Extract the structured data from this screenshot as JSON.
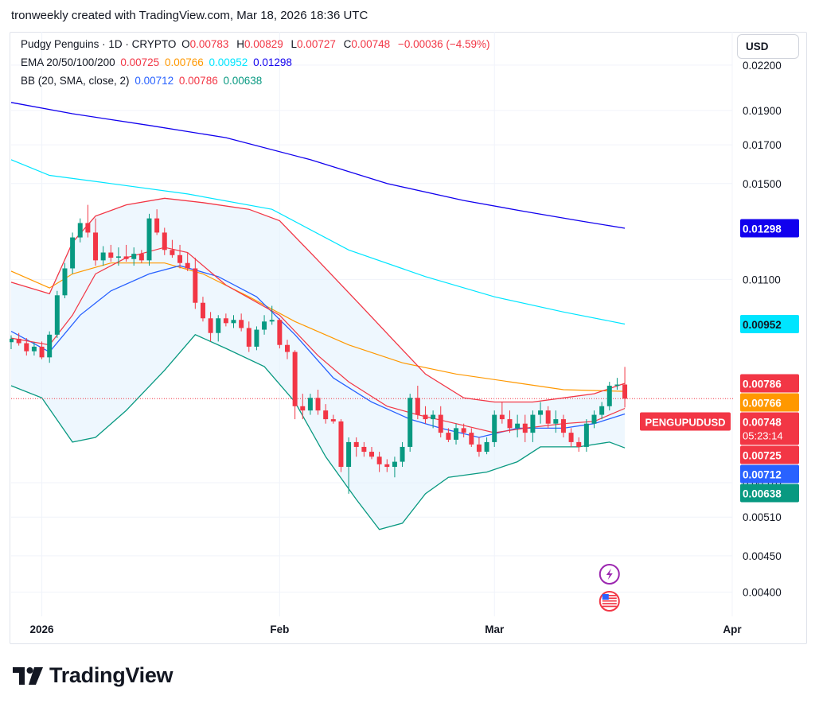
{
  "header": {
    "text": "tronweekly created with TradingView.com, Mar 18, 2026 18:36 UTC"
  },
  "legend": {
    "symbol": "Pudgy Penguins · 1D · CRYPTO",
    "o_label": "O",
    "o_value": "0.00783",
    "h_label": "H",
    "h_value": "0.00829",
    "l_label": "L",
    "l_value": "0.00727",
    "c_label": "C",
    "c_value": "0.00748",
    "change": "−0.00036 (−4.59%)",
    "ema_label": "EMA 20/50/100/200",
    "ema20": "0.00725",
    "ema50": "0.00766",
    "ema100": "0.00952",
    "ema200": "0.01298",
    "bb_label": "BB (20, SMA, close, 2)",
    "bb_basis": "0.00712",
    "bb_upper": "0.00786",
    "bb_lower": "0.00638"
  },
  "currency_button": "USD",
  "brand": {
    "name": "TradingView"
  },
  "colors": {
    "up": "#089981",
    "down": "#f23645",
    "ema20": "#f23645",
    "ema50": "#ff9800",
    "ema100": "#00e5ff",
    "ema200": "#1100ee",
    "bb_basis": "#2962ff",
    "bb_upper": "#f23645",
    "bb_lower": "#089981",
    "bb_fill": "#e3f2fd"
  },
  "chart_data": {
    "type": "candlestick",
    "title": "Pudgy Penguins · 1D · CRYPTO",
    "symbol_tag": "PENGUPUDUSD",
    "countdown": "05:23:14",
    "y_axis": {
      "scale": "log",
      "ticks": [
        "0.02200",
        "0.01900",
        "0.01700",
        "0.01500",
        "0.01100",
        "0.00570",
        "0.00510",
        "0.00450",
        "0.00400"
      ],
      "range": [
        0.0037,
        0.0245
      ]
    },
    "x_axis": {
      "start_date": "2025-12-28",
      "end_date": "2026-04-01",
      "ticks": [
        {
          "label": "2026",
          "date": "2026-01-01"
        },
        {
          "label": "Feb",
          "date": "2026-02-01"
        },
        {
          "label": "Mar",
          "date": "2026-03-01"
        },
        {
          "label": "Apr",
          "date": "2026-04-01"
        }
      ]
    },
    "price_labels": [
      {
        "name": "EMA 200",
        "value": "0.01298",
        "color": "#1100ee",
        "text_color": "#ffffff"
      },
      {
        "name": "EMA 100",
        "value": "0.00952",
        "color": "#00e5ff",
        "text_color": "#131722"
      },
      {
        "name": "BB upper",
        "value": "0.00786",
        "color": "#f23645",
        "text_color": "#ffffff"
      },
      {
        "name": "EMA 50",
        "value": "0.00766",
        "color": "#ff9800",
        "text_color": "#ffffff"
      },
      {
        "name": "Last",
        "value": "0.00748",
        "color": "#f23645",
        "text_color": "#ffffff"
      },
      {
        "name": "EMA 20",
        "value": "0.00725",
        "color": "#f23645",
        "text_color": "#ffffff"
      },
      {
        "name": "BB basis",
        "value": "0.00712",
        "color": "#2962ff",
        "text_color": "#ffffff"
      },
      {
        "name": "BB lower",
        "value": "0.00638",
        "color": "#089981",
        "text_color": "#ffffff"
      }
    ],
    "candles": [
      [
        "2025-12-28",
        0.00898,
        0.00918,
        0.00878,
        0.00908
      ],
      [
        "2025-12-29",
        0.00908,
        0.00925,
        0.00888,
        0.00895
      ],
      [
        "2025-12-30",
        0.00895,
        0.0091,
        0.0086,
        0.00872
      ],
      [
        "2025-12-31",
        0.00872,
        0.00898,
        0.0086,
        0.00885
      ],
      [
        "2026-01-01",
        0.00885,
        0.009,
        0.0085,
        0.00855
      ],
      [
        "2026-01-02",
        0.00855,
        0.0093,
        0.0084,
        0.0092
      ],
      [
        "2026-01-03",
        0.0092,
        0.0106,
        0.0091,
        0.01045
      ],
      [
        "2026-01-04",
        0.01045,
        0.0116,
        0.01035,
        0.0114
      ],
      [
        "2026-01-05",
        0.0114,
        0.0128,
        0.0112,
        0.0126
      ],
      [
        "2026-01-06",
        0.0126,
        0.0134,
        0.0124,
        0.0132
      ],
      [
        "2026-01-07",
        0.0132,
        0.014,
        0.0126,
        0.0128
      ],
      [
        "2026-01-08",
        0.0128,
        0.0134,
        0.0115,
        0.0117
      ],
      [
        "2026-01-09",
        0.0117,
        0.01225,
        0.0115,
        0.012
      ],
      [
        "2026-01-10",
        0.012,
        0.0123,
        0.01165,
        0.0118
      ],
      [
        "2026-01-11",
        0.0118,
        0.0122,
        0.0115,
        0.01185
      ],
      [
        "2026-01-12",
        0.01185,
        0.0123,
        0.01165,
        0.01175
      ],
      [
        "2026-01-13",
        0.01175,
        0.0122,
        0.0115,
        0.01195
      ],
      [
        "2026-01-14",
        0.01195,
        0.0121,
        0.0116,
        0.0117
      ],
      [
        "2026-01-15",
        0.0117,
        0.0136,
        0.0115,
        0.0134
      ],
      [
        "2026-01-16",
        0.0134,
        0.0138,
        0.0127,
        0.0128
      ],
      [
        "2026-01-17",
        0.0128,
        0.013,
        0.0119,
        0.0121
      ],
      [
        "2026-01-18",
        0.0121,
        0.0125,
        0.0118,
        0.0119
      ],
      [
        "2026-01-19",
        0.0119,
        0.0123,
        0.0114,
        0.0116
      ],
      [
        "2026-01-20",
        0.0116,
        0.012,
        0.0113,
        0.0114
      ],
      [
        "2026-01-21",
        0.0114,
        0.0118,
        0.01,
        0.0102
      ],
      [
        "2026-01-22",
        0.0102,
        0.0104,
        0.0096,
        0.0097
      ],
      [
        "2026-01-23",
        0.0097,
        0.0099,
        0.009,
        0.00925
      ],
      [
        "2026-01-24",
        0.00925,
        0.0098,
        0.009,
        0.0097
      ],
      [
        "2026-01-25",
        0.0097,
        0.00985,
        0.00945,
        0.00955
      ],
      [
        "2026-01-26",
        0.00955,
        0.0098,
        0.0094,
        0.00965
      ],
      [
        "2026-01-27",
        0.00965,
        0.00985,
        0.0093,
        0.0094
      ],
      [
        "2026-01-28",
        0.0094,
        0.0096,
        0.0087,
        0.00885
      ],
      [
        "2026-01-29",
        0.00885,
        0.00945,
        0.00875,
        0.00935
      ],
      [
        "2026-01-30",
        0.00935,
        0.0098,
        0.0092,
        0.0096
      ],
      [
        "2026-01-31",
        0.0096,
        0.0101,
        0.0095,
        0.00965
      ],
      [
        "2026-02-01",
        0.00965,
        0.0097,
        0.0088,
        0.0089
      ],
      [
        "2026-02-02",
        0.0089,
        0.00905,
        0.0085,
        0.0087
      ],
      [
        "2026-02-03",
        0.0087,
        0.00875,
        0.007,
        0.0073
      ],
      [
        "2026-02-04",
        0.0073,
        0.0076,
        0.007,
        0.0072
      ],
      [
        "2026-02-05",
        0.0072,
        0.0076,
        0.0071,
        0.0075
      ],
      [
        "2026-02-06",
        0.0075,
        0.0077,
        0.0071,
        0.0072
      ],
      [
        "2026-02-07",
        0.0072,
        0.00735,
        0.0069,
        0.007
      ],
      [
        "2026-02-08",
        0.007,
        0.0071,
        0.0069,
        0.00695
      ],
      [
        "2026-02-09",
        0.00695,
        0.007,
        0.0059,
        0.006
      ],
      [
        "2026-02-10",
        0.006,
        0.0066,
        0.0055,
        0.0065
      ],
      [
        "2026-02-11",
        0.0065,
        0.0066,
        0.0062,
        0.0064
      ],
      [
        "2026-02-12",
        0.0064,
        0.0065,
        0.0062,
        0.0063
      ],
      [
        "2026-02-13",
        0.0063,
        0.0064,
        0.00615,
        0.0062
      ],
      [
        "2026-02-14",
        0.0062,
        0.0063,
        0.0059,
        0.00605
      ],
      [
        "2026-02-15",
        0.00605,
        0.00615,
        0.0059,
        0.006
      ],
      [
        "2026-02-16",
        0.006,
        0.0062,
        0.0058,
        0.0061
      ],
      [
        "2026-02-17",
        0.0061,
        0.0065,
        0.006,
        0.0064
      ],
      [
        "2026-02-18",
        0.0064,
        0.0076,
        0.0063,
        0.0075
      ],
      [
        "2026-02-19",
        0.0075,
        0.0078,
        0.007,
        0.0071
      ],
      [
        "2026-02-20",
        0.0071,
        0.0073,
        0.0069,
        0.007
      ],
      [
        "2026-02-21",
        0.007,
        0.0072,
        0.0068,
        0.0071
      ],
      [
        "2026-02-22",
        0.0071,
        0.0073,
        0.0066,
        0.0067
      ],
      [
        "2026-02-23",
        0.0067,
        0.0068,
        0.0065,
        0.00655
      ],
      [
        "2026-02-24",
        0.00655,
        0.0069,
        0.00645,
        0.0068
      ],
      [
        "2026-02-25",
        0.0068,
        0.0069,
        0.0066,
        0.0067
      ],
      [
        "2026-02-26",
        0.0067,
        0.0068,
        0.0064,
        0.00645
      ],
      [
        "2026-02-27",
        0.00645,
        0.0066,
        0.0062,
        0.0063
      ],
      [
        "2026-02-28",
        0.0063,
        0.0066,
        0.00625,
        0.0065
      ],
      [
        "2026-03-01",
        0.0065,
        0.0072,
        0.0064,
        0.0071
      ],
      [
        "2026-03-02",
        0.0071,
        0.0074,
        0.0069,
        0.007
      ],
      [
        "2026-03-03",
        0.007,
        0.0072,
        0.0067,
        0.0068
      ],
      [
        "2026-03-04",
        0.0068,
        0.0071,
        0.0066,
        0.0069
      ],
      [
        "2026-03-05",
        0.0069,
        0.0071,
        0.0065,
        0.0067
      ],
      [
        "2026-03-06",
        0.0067,
        0.0072,
        0.0065,
        0.0071
      ],
      [
        "2026-03-07",
        0.0071,
        0.0074,
        0.0069,
        0.0072
      ],
      [
        "2026-03-08",
        0.0072,
        0.0073,
        0.0068,
        0.0069
      ],
      [
        "2026-03-09",
        0.0069,
        0.0072,
        0.0067,
        0.007
      ],
      [
        "2026-03-10",
        0.007,
        0.0071,
        0.0066,
        0.0067
      ],
      [
        "2026-03-11",
        0.0067,
        0.0068,
        0.0064,
        0.0065
      ],
      [
        "2026-03-12",
        0.0065,
        0.0066,
        0.0063,
        0.0064
      ],
      [
        "2026-03-13",
        0.0064,
        0.007,
        0.0063,
        0.0069
      ],
      [
        "2026-03-14",
        0.0069,
        0.0072,
        0.0068,
        0.0071
      ],
      [
        "2026-03-15",
        0.0071,
        0.0074,
        0.007,
        0.0073
      ],
      [
        "2026-03-16",
        0.0073,
        0.0079,
        0.0072,
        0.0078
      ],
      [
        "2026-03-17",
        0.0078,
        0.008,
        0.0077,
        0.00783
      ],
      [
        "2026-03-18",
        0.00783,
        0.00829,
        0.00727,
        0.00748
      ]
    ],
    "indicators": {
      "ema20": {
        "name": "EMA 20",
        "color": "#f23645",
        "points": [
          [
            "2025-12-28",
            0.0091
          ],
          [
            "2026-01-02",
            0.0089
          ],
          [
            "2026-01-05",
            0.0098
          ],
          [
            "2026-01-08",
            0.0112
          ],
          [
            "2026-01-12",
            0.0118
          ],
          [
            "2026-01-17",
            0.0122
          ],
          [
            "2026-01-20",
            0.012
          ],
          [
            "2026-01-25",
            0.0108
          ],
          [
            "2026-02-01",
            0.0098
          ],
          [
            "2026-02-06",
            0.0086
          ],
          [
            "2026-02-10",
            0.0079
          ],
          [
            "2026-02-15",
            0.0073
          ],
          [
            "2026-02-19",
            0.0071
          ],
          [
            "2026-02-24",
            0.0069
          ],
          [
            "2026-03-01",
            0.0067
          ],
          [
            "2026-03-05",
            0.0068
          ],
          [
            "2026-03-10",
            0.0069
          ],
          [
            "2026-03-14",
            0.00695
          ],
          [
            "2026-03-18",
            0.00725
          ]
        ]
      },
      "ema50": {
        "name": "EMA 50",
        "color": "#ff9800",
        "points": [
          [
            "2025-12-28",
            0.0113
          ],
          [
            "2026-01-02",
            0.0107
          ],
          [
            "2026-01-05",
            0.0112
          ],
          [
            "2026-01-10",
            0.0116
          ],
          [
            "2026-01-17",
            0.0116
          ],
          [
            "2026-01-22",
            0.0112
          ],
          [
            "2026-01-28",
            0.0104
          ],
          [
            "2026-02-03",
            0.0096
          ],
          [
            "2026-02-10",
            0.0089
          ],
          [
            "2026-02-17",
            0.0084
          ],
          [
            "2026-02-24",
            0.0081
          ],
          [
            "2026-03-03",
            0.0079
          ],
          [
            "2026-03-10",
            0.0077
          ],
          [
            "2026-03-18",
            0.00766
          ]
        ]
      },
      "ema100": {
        "name": "EMA 100",
        "color": "#00e5ff",
        "points": [
          [
            "2025-12-28",
            0.0162
          ],
          [
            "2026-01-02",
            0.0154
          ],
          [
            "2026-01-10",
            0.015
          ],
          [
            "2026-01-20",
            0.0145
          ],
          [
            "2026-01-31",
            0.0138
          ],
          [
            "2026-02-10",
            0.0121
          ],
          [
            "2026-02-20",
            0.0111
          ],
          [
            "2026-03-01",
            0.0104
          ],
          [
            "2026-03-10",
            0.0099
          ],
          [
            "2026-03-18",
            0.00952
          ]
        ]
      },
      "ema200": {
        "name": "EMA 200",
        "color": "#1100ee",
        "points": [
          [
            "2025-12-28",
            0.0195
          ],
          [
            "2026-01-05",
            0.0188
          ],
          [
            "2026-01-15",
            0.0181
          ],
          [
            "2026-01-25",
            0.0174
          ],
          [
            "2026-02-05",
            0.0162
          ],
          [
            "2026-02-15",
            0.015
          ],
          [
            "2026-02-25",
            0.0142
          ],
          [
            "2026-03-05",
            0.0137
          ],
          [
            "2026-03-12",
            0.0133
          ],
          [
            "2026-03-18",
            0.01298
          ]
        ]
      },
      "bb_upper": {
        "name": "BB upper",
        "color": "#f23645",
        "points": [
          [
            "2025-12-28",
            0.0109
          ],
          [
            "2026-01-02",
            0.0105
          ],
          [
            "2026-01-05",
            0.0124
          ],
          [
            "2026-01-08",
            0.0135
          ],
          [
            "2026-01-12",
            0.014
          ],
          [
            "2026-01-17",
            0.0143
          ],
          [
            "2026-01-22",
            0.0141
          ],
          [
            "2026-01-28",
            0.0138
          ],
          [
            "2026-02-01",
            0.0133
          ],
          [
            "2026-02-06",
            0.0117
          ],
          [
            "2026-02-12",
            0.01
          ],
          [
            "2026-02-16",
            0.009
          ],
          [
            "2026-02-20",
            0.0081
          ],
          [
            "2026-02-25",
            0.0075
          ],
          [
            "2026-03-01",
            0.0074
          ],
          [
            "2026-03-06",
            0.0074
          ],
          [
            "2026-03-10",
            0.0075
          ],
          [
            "2026-03-14",
            0.0076
          ],
          [
            "2026-03-18",
            0.00786
          ]
        ]
      },
      "bb_basis": {
        "name": "BB basis",
        "color": "#2962ff",
        "points": [
          [
            "2025-12-28",
            0.0093
          ],
          [
            "2026-01-02",
            0.0087
          ],
          [
            "2026-01-06",
            0.0098
          ],
          [
            "2026-01-10",
            0.0106
          ],
          [
            "2026-01-15",
            0.0112
          ],
          [
            "2026-01-19",
            0.0115
          ],
          [
            "2026-01-24",
            0.0111
          ],
          [
            "2026-01-29",
            0.0104
          ],
          [
            "2026-02-03",
            0.0092
          ],
          [
            "2026-02-08",
            0.008
          ],
          [
            "2026-02-13",
            0.0074
          ],
          [
            "2026-02-18",
            0.007
          ],
          [
            "2026-02-22",
            0.0068
          ],
          [
            "2026-02-27",
            0.0066
          ],
          [
            "2026-03-04",
            0.0068
          ],
          [
            "2026-03-10",
            0.0068
          ],
          [
            "2026-03-14",
            0.0069
          ],
          [
            "2026-03-18",
            0.00712
          ]
        ]
      },
      "bb_lower": {
        "name": "BB lower",
        "color": "#089981",
        "points": [
          [
            "2025-12-28",
            0.0078
          ],
          [
            "2026-01-01",
            0.0075
          ],
          [
            "2026-01-05",
            0.0065
          ],
          [
            "2026-01-08",
            0.0066
          ],
          [
            "2026-01-12",
            0.0072
          ],
          [
            "2026-01-17",
            0.0082
          ],
          [
            "2026-01-21",
            0.0092
          ],
          [
            "2026-01-25",
            0.0088
          ],
          [
            "2026-01-30",
            0.0083
          ],
          [
            "2026-02-03",
            0.0074
          ],
          [
            "2026-02-07",
            0.0062
          ],
          [
            "2026-02-11",
            0.0054
          ],
          [
            "2026-02-14",
            0.0049
          ],
          [
            "2026-02-17",
            0.005
          ],
          [
            "2026-02-20",
            0.0055
          ],
          [
            "2026-02-23",
            0.0058
          ],
          [
            "2026-02-28",
            0.0059
          ],
          [
            "2026-03-04",
            0.0061
          ],
          [
            "2026-03-07",
            0.0064
          ],
          [
            "2026-03-12",
            0.0064
          ],
          [
            "2026-03-16",
            0.0065
          ],
          [
            "2026-03-18",
            0.00638
          ]
        ]
      }
    }
  }
}
